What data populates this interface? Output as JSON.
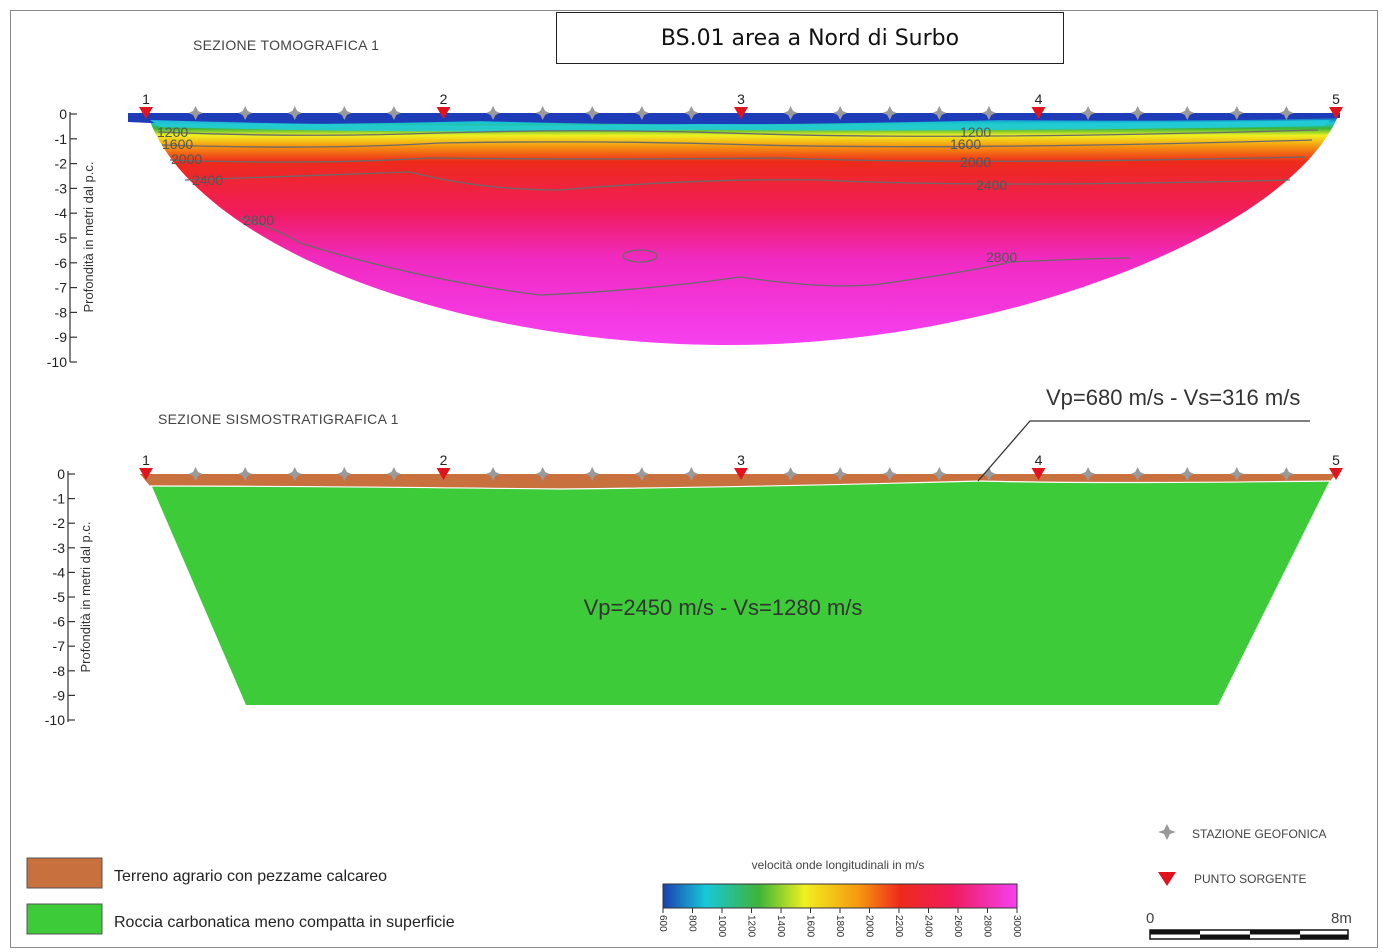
{
  "title": "BS.01 area a Nord di Surbo",
  "tomography": {
    "section_title": "SEZIONE TOMOGRAFICA 1",
    "y_axis_title": "Profondità in metri dal p.c.",
    "y_ticks": [
      "0",
      "-1",
      "-2",
      "-3",
      "-4",
      "-5",
      "-6",
      "-7",
      "-8",
      "-9",
      "-10"
    ],
    "source_numbers": [
      "1",
      "2",
      "3",
      "4",
      "5"
    ],
    "contour_labels_left": [
      "1200",
      "1600",
      "2000",
      "2400",
      "2800"
    ],
    "contour_labels_right": [
      "1200",
      "1600",
      "2000",
      "2400",
      "2800"
    ]
  },
  "seismostratigraphy": {
    "section_title": "SEZIONE SISMOSTRATIGRAFICA 1",
    "y_axis_title": "Profondità in metri dal p.c.",
    "y_ticks": [
      "0",
      "-1",
      "-2",
      "-3",
      "-4",
      "-5",
      "-6",
      "-7",
      "-8",
      "-9",
      "-10"
    ],
    "source_numbers": [
      "1",
      "2",
      "3",
      "4",
      "5"
    ],
    "top_layer_label": "Vp=680 m/s - Vs=316 m/s",
    "bottom_layer_label": "Vp=2450 m/s - Vs=1280 m/s"
  },
  "legend": {
    "items": [
      {
        "label": "Terreno agrario con pezzame calcareo",
        "color": "#c8703e"
      },
      {
        "label": "Roccia carbonatica meno compatta in superficie",
        "color": "#3ecb3a"
      }
    ],
    "colorbar_title": "velocità onde longitudinali in m/s",
    "colorbar_ticks": [
      "600",
      "800",
      "1000",
      "1200",
      "1400",
      "1600",
      "1800",
      "2000",
      "2200",
      "2400",
      "2600",
      "2800",
      "3000"
    ],
    "station_label": "STAZIONE GEOFONICA",
    "source_label": "PUNTO SORGENTE",
    "scale_start": "0",
    "scale_end": "8m"
  },
  "colors": {
    "layer_top": "#c8703e",
    "layer_rock": "#3ecb3a",
    "source_marker": "#e0141e",
    "station_marker": "#999999"
  }
}
